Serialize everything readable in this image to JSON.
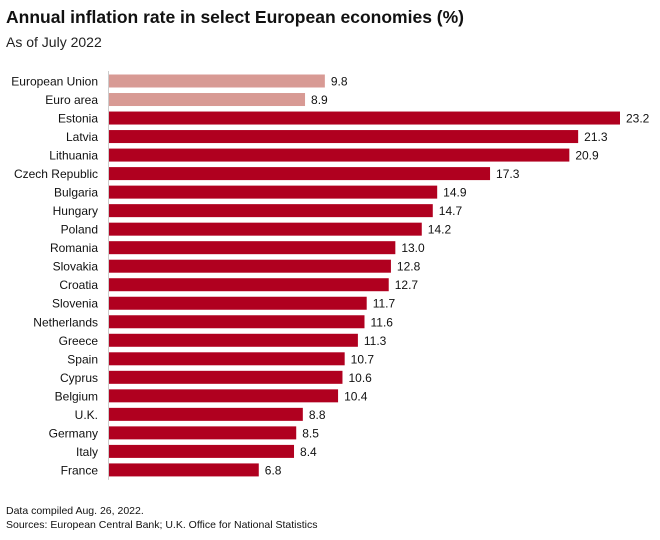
{
  "chart_data": {
    "type": "bar",
    "orientation": "horizontal",
    "title": "Annual inflation rate in select European economies (%)",
    "subtitle": "As of July 2022",
    "categories": [
      "European Union",
      "Euro area",
      "Estonia",
      "Latvia",
      "Lithuania",
      "Czech Republic",
      "Bulgaria",
      "Hungary",
      "Poland",
      "Romania",
      "Slovakia",
      "Croatia",
      "Slovenia",
      "Netherlands",
      "Greece",
      "Spain",
      "Cyprus",
      "Belgium",
      "U.K.",
      "Germany",
      "Italy",
      "France"
    ],
    "values": [
      9.8,
      8.9,
      23.2,
      21.3,
      20.9,
      17.3,
      14.9,
      14.7,
      14.2,
      13.0,
      12.8,
      12.7,
      11.7,
      11.6,
      11.3,
      10.7,
      10.6,
      10.4,
      8.8,
      8.5,
      8.4,
      6.8
    ],
    "labels": [
      "9.8",
      "8.9",
      "23.2",
      "21.3",
      "20.9",
      "17.3",
      "14.9",
      "14.7",
      "14.2",
      "13.0",
      "12.8",
      "12.7",
      "11.7",
      "11.6",
      "11.3",
      "10.7",
      "10.6",
      "10.4",
      "8.8",
      "8.5",
      "8.4",
      "6.8"
    ],
    "highlight": [
      true,
      true,
      false,
      false,
      false,
      false,
      false,
      false,
      false,
      false,
      false,
      false,
      false,
      false,
      false,
      false,
      false,
      false,
      false,
      false,
      false,
      false
    ],
    "colors": {
      "aggregate": "#d89a94",
      "country": "#b0001f",
      "axis": "#cccccc"
    },
    "xlim": [
      0,
      23.2
    ],
    "xlabel": "",
    "ylabel": "",
    "grid": false
  },
  "notes": {
    "compiled": "Data compiled Aug. 26, 2022.",
    "sources": "Sources: European Central Bank; U.K. Office for National Statistics"
  }
}
